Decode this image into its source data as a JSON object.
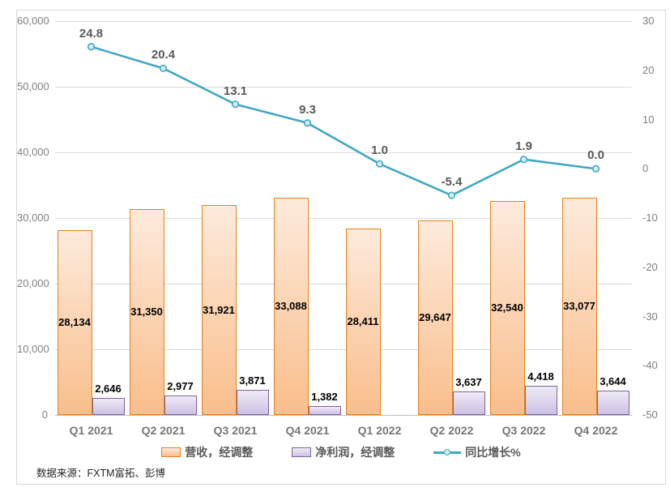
{
  "figure": {
    "border_color": "#D9D9D9",
    "background": "#FFFFFF",
    "gridline_color": "#D9D9D9",
    "baseline_color": "#BFBFBF"
  },
  "footer": {
    "source_label": "数据来源：FXTM富拓、彭博"
  },
  "chart_data": {
    "type": "bar+line combo",
    "title": "",
    "legend_position": "bottom",
    "grid": "horizontal",
    "categories": [
      "Q1 2021",
      "Q2 2021",
      "Q3 2021",
      "Q4 2021",
      "Q1 2022",
      "Q2 2022",
      "Q3 2022",
      "Q4 2022"
    ],
    "series": [
      {
        "name": "营收，经调整",
        "type": "bar",
        "axis": "left",
        "fill_top": "#FDEADC",
        "fill_bottom": "#F9BE8B",
        "border": "#E2821E",
        "label_position": "inside-center",
        "values": [
          28134,
          31350,
          31921,
          33088,
          28411,
          29647,
          32540,
          33077
        ],
        "labels": [
          "28,134",
          "31,350",
          "31,921",
          "33,088",
          "28,411",
          "29,647",
          "32,540",
          "33,077"
        ]
      },
      {
        "name": "净利润，经调整",
        "type": "bar",
        "axis": "left",
        "fill_top": "#EFEAF7",
        "fill_bottom": "#CDC1E3",
        "border": "#7E62A1",
        "label_position": "above",
        "values": [
          2646,
          2977,
          3871,
          1382,
          null,
          3637,
          4418,
          3644
        ],
        "labels": [
          "2,646",
          "2,977",
          "3,871",
          "1,382",
          null,
          "3,637",
          "4,418",
          "3,644"
        ]
      },
      {
        "name": "同比增长%",
        "type": "line",
        "axis": "right",
        "color": "#42A7C5",
        "marker_fill": "#D6ECF4",
        "label_color": "#595959",
        "values": [
          24.8,
          20.4,
          13.1,
          9.3,
          1.0,
          -5.4,
          1.9,
          0.0
        ],
        "labels": [
          "24.8",
          "20.4",
          "13.1",
          "9.3",
          "1.0",
          "-5.4",
          "1.9",
          "0.0"
        ]
      }
    ],
    "left_axis": {
      "min": 0,
      "max": 60000,
      "step": 10000,
      "tick_labels": [
        "0",
        "10,000",
        "20,000",
        "30,000",
        "40,000",
        "50,000",
        "60,000"
      ]
    },
    "right_axis": {
      "min": -50,
      "max": 30,
      "step": 10,
      "tick_labels": [
        "-50",
        "-40",
        "-30",
        "-20",
        "-10",
        "0",
        "10",
        "20",
        "30"
      ]
    }
  }
}
